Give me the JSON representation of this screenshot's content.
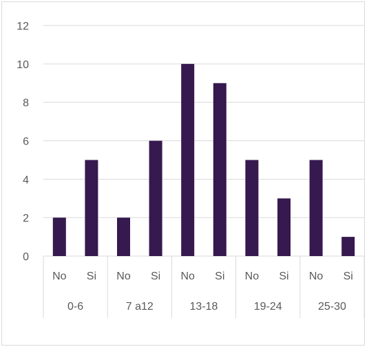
{
  "chart_data": {
    "type": "bar",
    "ylim": [
      0,
      12
    ],
    "yticks": [
      0,
      2,
      4,
      6,
      8,
      10,
      12
    ],
    "grid": true,
    "bar_color": "#35194f",
    "groups": [
      {
        "label": "0-6",
        "categories": [
          "No",
          "Si"
        ],
        "values": [
          2,
          5
        ]
      },
      {
        "label": "7 a12",
        "categories": [
          "No",
          "Si"
        ],
        "values": [
          2,
          6
        ]
      },
      {
        "label": "13-18",
        "categories": [
          "No",
          "Si"
        ],
        "values": [
          10,
          9
        ]
      },
      {
        "label": "19-24",
        "categories": [
          "No",
          "Si"
        ],
        "values": [
          5,
          3
        ]
      },
      {
        "label": "25-30",
        "categories": [
          "No",
          "Si"
        ],
        "values": [
          5,
          1
        ]
      }
    ]
  }
}
